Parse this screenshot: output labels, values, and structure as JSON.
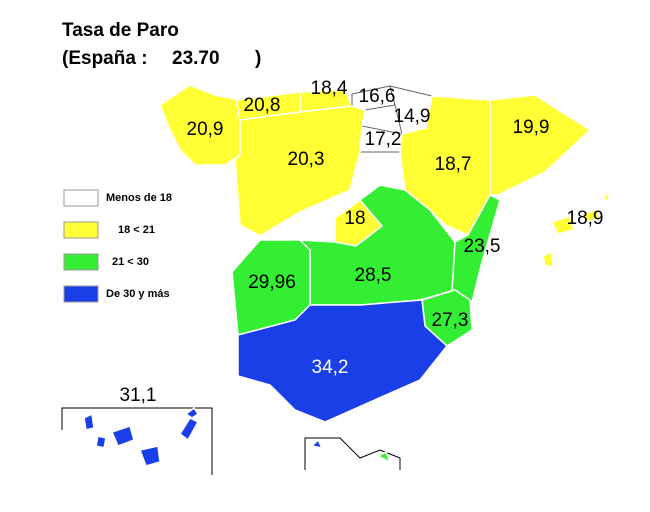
{
  "header": {
    "title": "Tasa de Paro",
    "subtitle_prefix": "(España :",
    "national_rate": "23.70",
    "subtitle_suffix": ")"
  },
  "legend": [
    {
      "label": "Menos de 18"
    },
    {
      "label": "18 < 21"
    },
    {
      "label": "21 < 30"
    },
    {
      "label": "De 30 y más"
    }
  ],
  "regions": [
    {
      "label": "20,9"
    },
    {
      "label": "20,8"
    },
    {
      "label": "18,4"
    },
    {
      "label": "16,6"
    },
    {
      "label": "14,9"
    },
    {
      "label": "17,2"
    },
    {
      "label": "20,3"
    },
    {
      "label": "18,7"
    },
    {
      "label": "19,9"
    },
    {
      "label": "18"
    },
    {
      "label": "28,5"
    },
    {
      "label": "29,96"
    },
    {
      "label": "23,5"
    },
    {
      "label": "27,3"
    },
    {
      "label": "34,2"
    },
    {
      "label": "18,9"
    },
    {
      "label": "31,1"
    }
  ]
}
